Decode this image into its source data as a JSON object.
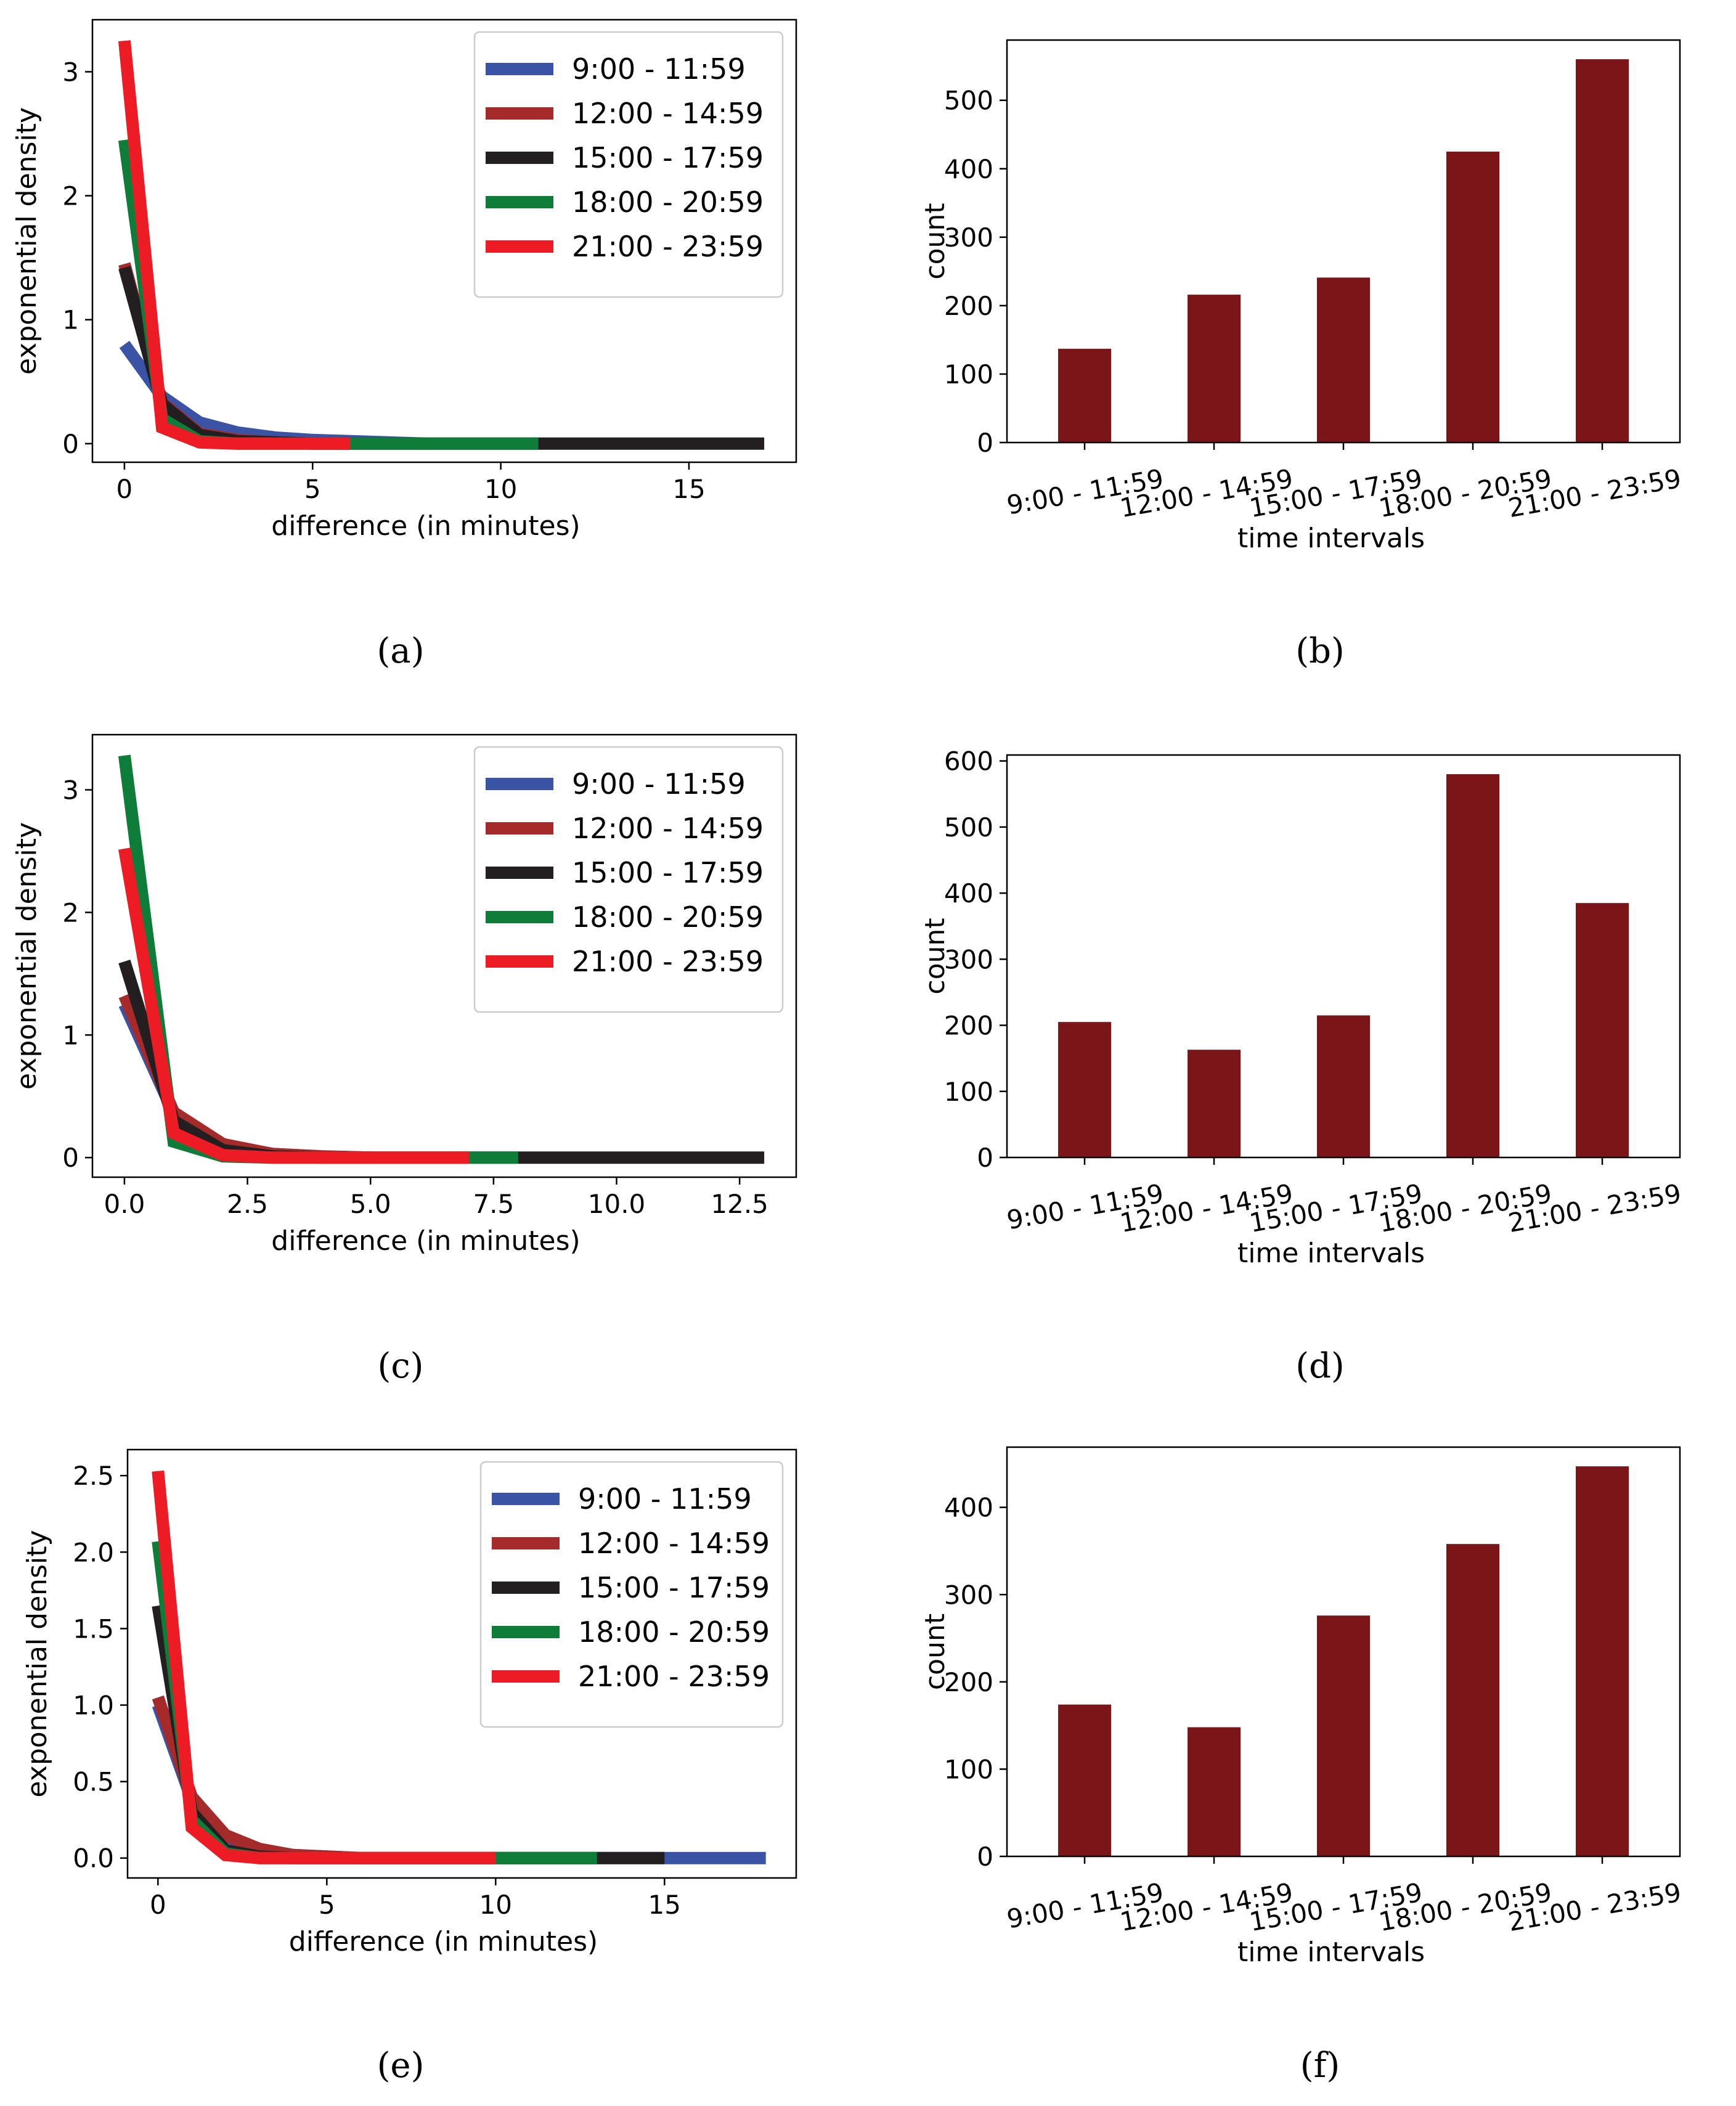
{
  "colors": {
    "blue": "#3a53a4",
    "darkred": "#a52a2a",
    "black": "#231f20",
    "green": "#0f7d3a",
    "red": "#ed1c24",
    "bar": "#7b1518"
  },
  "captions": [
    "(a)",
    "(b)",
    "(c)",
    "(d)",
    "(e)",
    "(f)"
  ],
  "chart_data": [
    {
      "type": "line",
      "id": "a",
      "title": "",
      "xlabel": "difference (in minutes)",
      "ylabel": "exponential density",
      "xlim": [
        -0.85,
        17.85
      ],
      "ylim": [
        -0.15,
        3.42
      ],
      "xticks": [
        0,
        5,
        10,
        15
      ],
      "xtick_labels": [
        "0",
        "5",
        "10",
        "15"
      ],
      "yticks": [
        0,
        1,
        2,
        3
      ],
      "ytick_labels": [
        "0",
        "1",
        "2",
        "3"
      ],
      "legend": "top-right",
      "series": [
        {
          "name": "9:00 - 11:59",
          "color": "blue",
          "x": [
            0,
            1,
            2,
            3,
            4,
            5,
            6,
            7,
            8
          ],
          "y": [
            0.8,
            0.38,
            0.17,
            0.09,
            0.05,
            0.03,
            0.02,
            0.01,
            0.0
          ]
        },
        {
          "name": "12:00 - 14:59",
          "color": "darkred",
          "x": [
            0,
            1,
            2,
            3,
            4,
            5,
            6
          ],
          "y": [
            1.45,
            0.33,
            0.08,
            0.03,
            0.01,
            0.0,
            0.0
          ]
        },
        {
          "name": "15:00 - 17:59",
          "color": "black",
          "x": [
            0,
            1,
            2,
            3,
            4,
            5,
            6,
            7,
            8,
            9,
            10,
            11,
            12,
            13,
            14,
            15,
            16,
            17
          ],
          "y": [
            1.42,
            0.32,
            0.07,
            0.02,
            0.01,
            0.0,
            0.0,
            0.0,
            0.0,
            0.0,
            0.0,
            0.0,
            0.0,
            0.0,
            0.0,
            0.0,
            0.0,
            0.0
          ]
        },
        {
          "name": "18:00 - 20:59",
          "color": "green",
          "x": [
            0,
            1,
            2,
            3,
            4,
            5,
            6,
            7,
            8,
            9,
            10,
            11
          ],
          "y": [
            2.45,
            0.2,
            0.02,
            0.0,
            0.0,
            0.0,
            0.0,
            0.0,
            0.0,
            0.0,
            0.0,
            0.0
          ]
        },
        {
          "name": "21:00 - 23:59",
          "color": "red",
          "x": [
            0,
            1,
            2,
            3,
            4,
            5,
            6
          ],
          "y": [
            3.25,
            0.13,
            0.01,
            0.0,
            0.0,
            0.0,
            0.0
          ]
        }
      ]
    },
    {
      "type": "bar",
      "id": "b",
      "title": "",
      "xlabel": "time intervals",
      "ylabel": "count",
      "categories": [
        "9:00 - 11:59",
        "12:00 - 14:59",
        "15:00 - 17:59",
        "18:00 - 20:59",
        "21:00 - 23:59"
      ],
      "values": [
        137,
        216,
        241,
        425,
        560
      ],
      "ylim": [
        0,
        588
      ],
      "yticks": [
        0,
        100,
        200,
        300,
        400,
        500
      ],
      "ytick_labels": [
        "0",
        "100",
        "200",
        "300",
        "400",
        "500"
      ],
      "legend": "none"
    },
    {
      "type": "line",
      "id": "c",
      "title": "",
      "xlabel": "difference (in minutes)",
      "ylabel": "exponential density",
      "xlim": [
        -0.65,
        13.65
      ],
      "ylim": [
        -0.16,
        3.45
      ],
      "xticks": [
        0,
        2.5,
        5,
        7.5,
        10,
        12.5
      ],
      "xtick_labels": [
        "0.0",
        "2.5",
        "5.0",
        "7.5",
        "10.0",
        "12.5"
      ],
      "yticks": [
        0,
        1,
        2,
        3
      ],
      "ytick_labels": [
        "0",
        "1",
        "2",
        "3"
      ],
      "legend": "top-right",
      "series": [
        {
          "name": "9:00 - 11:59",
          "color": "blue",
          "x": [
            0,
            1,
            2,
            3,
            4,
            5
          ],
          "y": [
            1.25,
            0.36,
            0.1,
            0.03,
            0.01,
            0.0
          ]
        },
        {
          "name": "12:00 - 14:59",
          "color": "darkred",
          "x": [
            0,
            1,
            2,
            3,
            4,
            5
          ],
          "y": [
            1.32,
            0.37,
            0.11,
            0.03,
            0.01,
            0.0
          ]
        },
        {
          "name": "15:00 - 17:59",
          "color": "black",
          "x": [
            0,
            1,
            2,
            3,
            4,
            5,
            6,
            7,
            8,
            9,
            10,
            11,
            12,
            13
          ],
          "y": [
            1.6,
            0.3,
            0.06,
            0.01,
            0.0,
            0.0,
            0.0,
            0.0,
            0.0,
            0.0,
            0.0,
            0.0,
            0.0,
            0.0
          ]
        },
        {
          "name": "18:00 - 20:59",
          "color": "green",
          "x": [
            0,
            1,
            2,
            3,
            4,
            5,
            6,
            7,
            8
          ],
          "y": [
            3.28,
            0.13,
            0.01,
            0.0,
            0.0,
            0.0,
            0.0,
            0.0,
            0.0
          ]
        },
        {
          "name": "21:00 - 23:59",
          "color": "red",
          "x": [
            0,
            1,
            2,
            3,
            4,
            5,
            6,
            7
          ],
          "y": [
            2.52,
            0.2,
            0.02,
            0.0,
            0.0,
            0.0,
            0.0,
            0.0
          ]
        }
      ]
    },
    {
      "type": "bar",
      "id": "d",
      "title": "",
      "xlabel": "time intervals",
      "ylabel": "count",
      "categories": [
        "9:00 - 11:59",
        "12:00 - 14:59",
        "15:00 - 17:59",
        "18:00 - 20:59",
        "21:00 - 23:59"
      ],
      "values": [
        205,
        163,
        215,
        580,
        385
      ],
      "ylim": [
        0,
        609
      ],
      "yticks": [
        0,
        100,
        200,
        300,
        400,
        500,
        600
      ],
      "ytick_labels": [
        "0",
        "100",
        "200",
        "300",
        "400",
        "500",
        "600"
      ],
      "legend": "none"
    },
    {
      "type": "line",
      "id": "e",
      "title": "",
      "xlabel": "difference (in minutes)",
      "ylabel": "exponential density",
      "xlim": [
        -0.9,
        18.9
      ],
      "ylim": [
        -0.13,
        2.67
      ],
      "xticks": [
        0,
        5,
        10,
        15
      ],
      "xtick_labels": [
        "0",
        "5",
        "10",
        "15"
      ],
      "yticks": [
        0,
        0.5,
        1,
        1.5,
        2,
        2.5
      ],
      "ytick_labels": [
        "0.0",
        "0.5",
        "1.0",
        "1.5",
        "2.0",
        "2.5"
      ],
      "legend": "top-right",
      "series": [
        {
          "name": "9:00 - 11:59",
          "color": "blue",
          "x": [
            0,
            1,
            2,
            3,
            4,
            5,
            6,
            7,
            8,
            9,
            10,
            11,
            12,
            13,
            14,
            15,
            16,
            17,
            18
          ],
          "y": [
            1.0,
            0.38,
            0.14,
            0.05,
            0.02,
            0.01,
            0.0,
            0.0,
            0.0,
            0.0,
            0.0,
            0.0,
            0.0,
            0.0,
            0.0,
            0.0,
            0.0,
            0.0,
            0.0
          ]
        },
        {
          "name": "12:00 - 14:59",
          "color": "darkred",
          "x": [
            0,
            1,
            2,
            3,
            4,
            5,
            6
          ],
          "y": [
            1.05,
            0.4,
            0.15,
            0.06,
            0.02,
            0.01,
            0.0
          ]
        },
        {
          "name": "15:00 - 17:59",
          "color": "black",
          "x": [
            0,
            1,
            2,
            3,
            4,
            5,
            6,
            7,
            8,
            9,
            10,
            11,
            12,
            13,
            14,
            15
          ],
          "y": [
            1.65,
            0.3,
            0.05,
            0.01,
            0.0,
            0.0,
            0.0,
            0.0,
            0.0,
            0.0,
            0.0,
            0.0,
            0.0,
            0.0,
            0.0,
            0.0
          ]
        },
        {
          "name": "18:00 - 20:59",
          "color": "green",
          "x": [
            0,
            1,
            2,
            3,
            4,
            5,
            6,
            7,
            8,
            9,
            10,
            11,
            12,
            13
          ],
          "y": [
            2.07,
            0.25,
            0.03,
            0.0,
            0.0,
            0.0,
            0.0,
            0.0,
            0.0,
            0.0,
            0.0,
            0.0,
            0.0,
            0.0
          ]
        },
        {
          "name": "21:00 - 23:59",
          "color": "red",
          "x": [
            0,
            1,
            2,
            3,
            4,
            5,
            6,
            7,
            8,
            9,
            10
          ],
          "y": [
            2.53,
            0.2,
            0.02,
            0.0,
            0.0,
            0.0,
            0.0,
            0.0,
            0.0,
            0.0,
            0.0
          ]
        }
      ]
    },
    {
      "type": "bar",
      "id": "f",
      "title": "",
      "xlabel": "time intervals",
      "ylabel": "count",
      "categories": [
        "9:00 - 11:59",
        "12:00 - 14:59",
        "15:00 - 17:59",
        "18:00 - 20:59",
        "21:00 - 23:59"
      ],
      "values": [
        174,
        148,
        276,
        358,
        447
      ],
      "ylim": [
        0,
        469
      ],
      "yticks": [
        0,
        100,
        200,
        300,
        400
      ],
      "ytick_labels": [
        "0",
        "100",
        "200",
        "300",
        "400"
      ],
      "legend": "none"
    }
  ]
}
